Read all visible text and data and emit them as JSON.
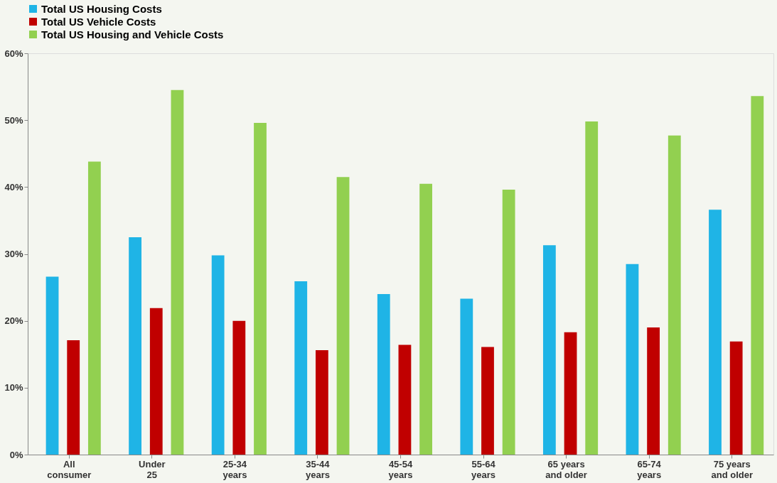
{
  "chart_data": {
    "type": "bar",
    "categories": [
      "All\nconsumer",
      "Under\n25",
      "25-34\nyears",
      "35-44\nyears",
      "45-54\nyears",
      "55-64\nyears",
      "65 years\nand older",
      "65-74\nyears",
      "75 years\nand older"
    ],
    "series": [
      {
        "name": "Total US Housing Costs",
        "color": "#1fb4e6",
        "values": [
          26.6,
          32.5,
          29.8,
          25.9,
          24.0,
          23.3,
          31.3,
          28.5,
          36.6
        ]
      },
      {
        "name": "Total US Vehicle Costs",
        "color": "#c00000",
        "values": [
          17.1,
          21.9,
          20.0,
          15.6,
          16.4,
          16.1,
          18.3,
          19.0,
          16.9
        ]
      },
      {
        "name": "Total US Housing and Vehicle Costs",
        "color": "#92d050",
        "values": [
          43.8,
          54.5,
          49.6,
          41.5,
          40.5,
          39.6,
          49.8,
          47.7,
          53.6
        ]
      }
    ],
    "ylim": [
      0,
      60
    ],
    "yticks": [
      {
        "value": 0,
        "label": "0%"
      },
      {
        "value": 10,
        "label": "10%"
      },
      {
        "value": 20,
        "label": "20%"
      },
      {
        "value": 30,
        "label": "30%"
      },
      {
        "value": 40,
        "label": "40%"
      },
      {
        "value": 50,
        "label": "50%"
      },
      {
        "value": 60,
        "label": "60%"
      }
    ],
    "grid": false,
    "legend": "top"
  }
}
